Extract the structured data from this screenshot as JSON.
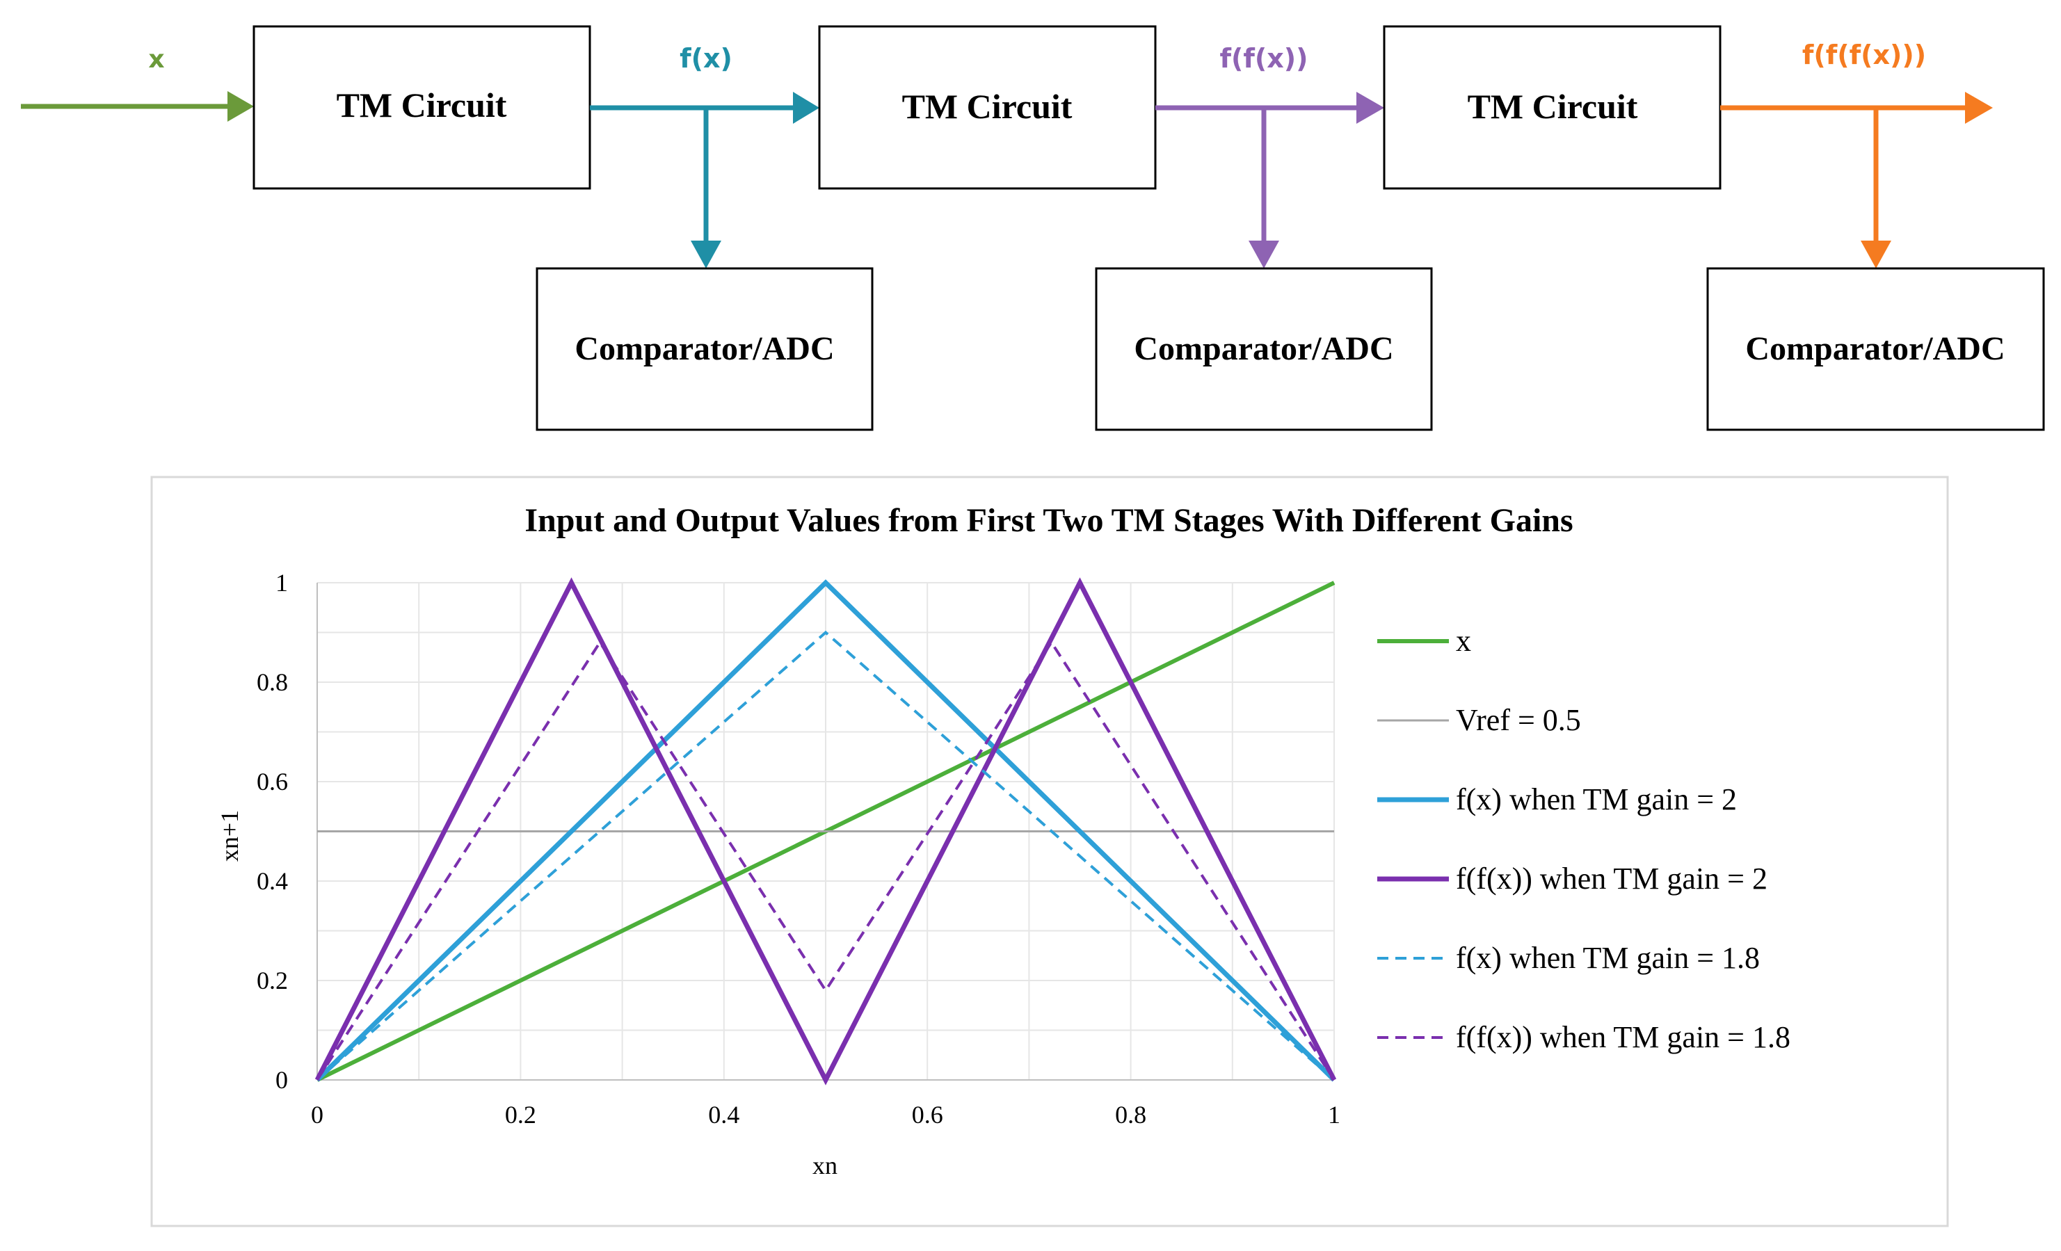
{
  "diagram": {
    "blocks": [
      {
        "id": "tm1",
        "label": "TM Circuit"
      },
      {
        "id": "tm2",
        "label": "TM Circuit"
      },
      {
        "id": "tm3",
        "label": "TM Circuit"
      },
      {
        "id": "cmp1",
        "label": "Comparator/ADC"
      },
      {
        "id": "cmp2",
        "label": "Comparator/ADC"
      },
      {
        "id": "cmp3",
        "label": "Comparator/ADC"
      }
    ],
    "signals": [
      {
        "label": "x",
        "color": "#6b9a3a"
      },
      {
        "label": "f(x)",
        "color": "#1f8fa6"
      },
      {
        "label": "f(f(x))",
        "color": "#8e63b3"
      },
      {
        "label": "f(f(f(x)))",
        "color": "#f57b20"
      }
    ]
  },
  "chart_data": {
    "type": "line",
    "title": "Input and Output Values from First Two TM Stages With Different Gains",
    "xlabel": "xn",
    "ylabel": "xn+1",
    "xlim": [
      0,
      1
    ],
    "ylim": [
      0,
      1
    ],
    "x_ticks": [
      0,
      0.2,
      0.4,
      0.6,
      0.8,
      1
    ],
    "x_tick_labels": [
      "0",
      "0.2",
      "0.4",
      "0.6",
      "0.8",
      "1"
    ],
    "y_ticks": [
      0,
      0.2,
      0.4,
      0.6,
      0.8,
      1
    ],
    "y_tick_labels": [
      "0",
      "0.2",
      "0.4",
      "0.6",
      "0.8",
      "1"
    ],
    "grid": true,
    "legend_position": "right",
    "series": [
      {
        "name": "x",
        "color": "#4caf3a",
        "style": "solid",
        "x": [
          0,
          1
        ],
        "y": [
          0,
          1
        ]
      },
      {
        "name": "Vref = 0.5",
        "color": "#a6a6a6",
        "style": "solid",
        "x": [
          0,
          1
        ],
        "y": [
          0.5,
          0.5
        ]
      },
      {
        "name": "f(x) when TM gain = 2",
        "color": "#2ea0d8",
        "style": "solid",
        "x": [
          0,
          0.5,
          1
        ],
        "y": [
          0,
          1,
          0
        ]
      },
      {
        "name": "f(f(x)) when TM gain = 2",
        "color": "#7a2fae",
        "style": "solid",
        "x": [
          0,
          0.25,
          0.5,
          0.75,
          1
        ],
        "y": [
          0,
          1,
          0,
          1,
          0
        ]
      },
      {
        "name": "f(x) when TM gain = 1.8",
        "color": "#2ea0d8",
        "style": "dashed",
        "x": [
          0,
          0.5,
          1
        ],
        "y": [
          0,
          0.9,
          0
        ]
      },
      {
        "name": "f(f(x)) when TM gain = 1.8",
        "color": "#7a2fae",
        "style": "dashed",
        "x": [
          0,
          0.278,
          0.5,
          0.722,
          1
        ],
        "y": [
          0,
          0.88,
          0.18,
          0.88,
          0
        ]
      }
    ]
  }
}
